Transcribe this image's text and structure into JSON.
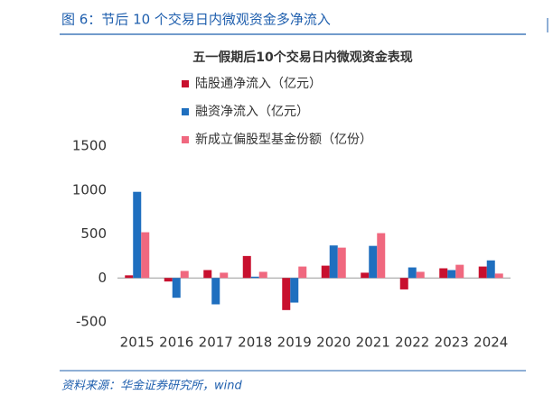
{
  "header": {
    "title": "图 6：节后 10 个交易日内微观资金多净流入"
  },
  "chart_data": {
    "type": "bar",
    "title": "五一假期后10个交易日内微观资金表现",
    "categories": [
      "2015",
      "2016",
      "2017",
      "2018",
      "2019",
      "2020",
      "2021",
      "2022",
      "2023",
      "2024"
    ],
    "series": [
      {
        "name": "陆股通净流入（亿元）",
        "color": "#c8102e",
        "values": [
          30,
          -40,
          90,
          250,
          -365,
          140,
          60,
          -130,
          110,
          130
        ]
      },
      {
        "name": "融资净流入（亿元）",
        "color": "#1f6fbf",
        "values": [
          980,
          -225,
          -300,
          15,
          -280,
          370,
          365,
          120,
          90,
          200
        ]
      },
      {
        "name": "新成立偏股型基金份额（亿份）",
        "color": "#f0687f",
        "values": [
          520,
          80,
          60,
          70,
          130,
          345,
          510,
          70,
          150,
          50
        ]
      }
    ],
    "ylim": [
      -500,
      1500
    ],
    "yticks": [
      -500,
      0,
      500,
      1000,
      1500
    ],
    "grid": false
  },
  "source": "资料来源：华金证券研究所，wind"
}
